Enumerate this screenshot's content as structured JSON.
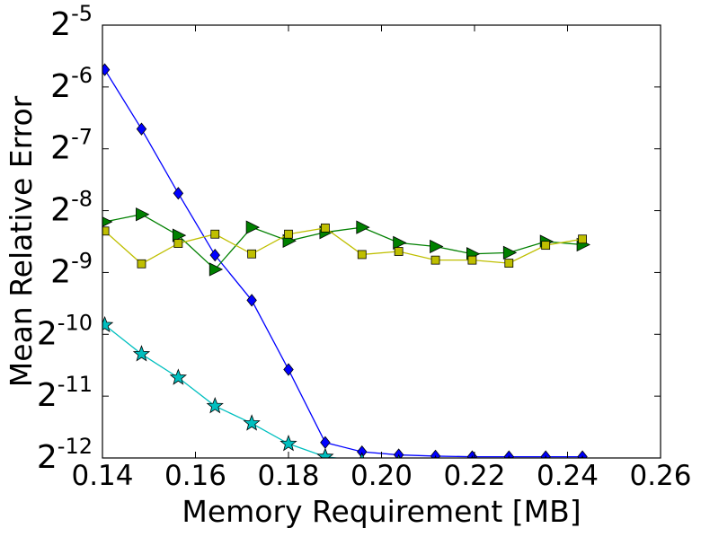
{
  "chart_data": {
    "type": "line",
    "title": "",
    "xlabel": "Memory Requirement [MB]",
    "ylabel": "Mean Relative Error",
    "xlim": [
      0.14,
      0.26
    ],
    "ylim_log2": [
      -12,
      -5
    ],
    "yscale": "log2",
    "x_ticks": [
      "0.14",
      "0.16",
      "0.18",
      "0.20",
      "0.22",
      "0.24",
      "0.26"
    ],
    "x_tick_values": [
      0.14,
      0.16,
      0.18,
      0.2,
      0.22,
      0.24,
      0.26
    ],
    "y_tick_base": "2",
    "y_tick_exponents": [
      "-12",
      "-11",
      "-10",
      "-9",
      "-8",
      "-7",
      "-6",
      "-5"
    ],
    "grid": false,
    "legend": "none",
    "series": [
      {
        "color": "#0000ff",
        "marker": "diamond",
        "x": [
          0.1405,
          0.1484,
          0.1563,
          0.1642,
          0.1721,
          0.18,
          0.1879,
          0.1958,
          0.2037,
          0.2116,
          0.2195,
          0.2274,
          0.2353,
          0.2432
        ],
        "log2_y": [
          -5.72,
          -6.68,
          -7.72,
          -8.72,
          -9.45,
          -10.57,
          -11.75,
          -11.9,
          -11.95,
          -11.97,
          -11.98,
          -11.98,
          -11.98,
          -11.98
        ]
      },
      {
        "color": "#008000",
        "marker": "triangle-right",
        "x": [
          0.1405,
          0.1484,
          0.1563,
          0.1642,
          0.1721,
          0.18,
          0.1879,
          0.1958,
          0.2037,
          0.2116,
          0.2195,
          0.2274,
          0.2353,
          0.2432
        ],
        "log2_y": [
          -8.18,
          -8.06,
          -8.4,
          -8.95,
          -8.27,
          -8.49,
          -8.35,
          -8.27,
          -8.52,
          -8.58,
          -8.7,
          -8.68,
          -8.5,
          -8.55
        ]
      },
      {
        "color": "#bfbf00",
        "marker": "square",
        "x": [
          0.1405,
          0.1484,
          0.1563,
          0.1642,
          0.1721,
          0.18,
          0.1879,
          0.1958,
          0.2037,
          0.2116,
          0.2195,
          0.2274,
          0.2353,
          0.2432
        ],
        "log2_y": [
          -8.33,
          -8.86,
          -8.53,
          -8.38,
          -8.7,
          -8.38,
          -8.28,
          -8.71,
          -8.66,
          -8.8,
          -8.8,
          -8.85,
          -8.56,
          -8.46
        ]
      },
      {
        "color": "#00bfbf",
        "marker": "star",
        "x": [
          0.1405,
          0.1484,
          0.1563,
          0.1642,
          0.1721,
          0.18,
          0.1879,
          0.1958,
          0.2037,
          0.2116,
          0.2195,
          0.2274,
          0.2353,
          0.2432
        ],
        "log2_y": [
          -9.85,
          -10.32,
          -10.7,
          -11.16,
          -11.44,
          -11.77,
          -11.98,
          -12.05,
          -12.08,
          -12.1,
          -12.1,
          -12.1,
          -12.1,
          -12.1
        ]
      }
    ]
  }
}
